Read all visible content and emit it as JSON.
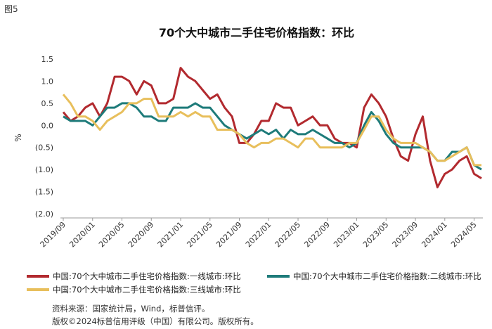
{
  "figure_label": "图5",
  "source_lines": [
    "资料来源：国家统计局，Wind，标普信评。",
    "版权©2024标普信用评级（中国）有限公司。版权所有。"
  ],
  "chart_data": {
    "type": "line",
    "title": "70个大中城市二手住宅价格指数：环比",
    "xlabel": "",
    "ylabel": "%",
    "ylim": [
      -2.0,
      1.5
    ],
    "yticks": [
      1.5,
      1.0,
      0.5,
      0.0,
      -0.5,
      -1.0,
      -1.5,
      -2.0
    ],
    "ytick_labels": [
      "1.5",
      "1.0",
      "0.5",
      "0.0",
      "(0.5)",
      "(1.0)",
      "(1.5)",
      "(2.0)"
    ],
    "xtick_labels": [
      "2019/09",
      "2020/01",
      "2020/05",
      "2020/09",
      "2021/01",
      "2021/05",
      "2021/09",
      "2022/01",
      "2022/05",
      "2022/09",
      "2023/01",
      "2023/05",
      "2023/09",
      "2024/01",
      "2024/05"
    ],
    "x_start": "2019/09",
    "x_end": "2024/05",
    "grid": false,
    "legend_position": "bottom",
    "series": [
      {
        "name": "中国:70个大中城市二手住宅价格指数:一线城市:环比",
        "color": "#b22a2f",
        "values": [
          0.3,
          0.1,
          0.2,
          0.4,
          0.5,
          0.2,
          0.5,
          1.1,
          1.1,
          1.0,
          0.7,
          1.0,
          0.9,
          0.5,
          0.5,
          0.6,
          1.3,
          1.1,
          1.0,
          0.8,
          0.6,
          0.7,
          0.4,
          0.2,
          -0.4,
          -0.4,
          -0.2,
          0.1,
          0.1,
          0.5,
          0.4,
          0.4,
          0.0,
          0.1,
          0.2,
          0.0,
          0.0,
          -0.3,
          -0.4,
          -0.4,
          -0.5,
          0.4,
          0.7,
          0.5,
          0.2,
          -0.3,
          -0.7,
          -0.8,
          -0.2,
          0.2,
          -0.8,
          -1.4,
          -1.1,
          -1.0,
          -0.8,
          -0.7,
          -1.1,
          -1.2
        ]
      },
      {
        "name": "中国:70个大中城市二手住宅价格指数:二线城市:环比",
        "color": "#1e7b7a",
        "values": [
          0.2,
          0.1,
          0.1,
          0.1,
          0.0,
          0.2,
          0.4,
          0.4,
          0.5,
          0.5,
          0.4,
          0.2,
          0.2,
          0.1,
          0.1,
          0.4,
          0.4,
          0.4,
          0.5,
          0.4,
          0.4,
          0.2,
          0.0,
          -0.1,
          -0.2,
          -0.3,
          -0.2,
          -0.1,
          -0.2,
          -0.1,
          -0.3,
          -0.1,
          -0.2,
          -0.2,
          -0.1,
          -0.2,
          -0.3,
          -0.4,
          -0.4,
          -0.5,
          -0.4,
          0.0,
          0.3,
          0.1,
          -0.2,
          -0.4,
          -0.5,
          -0.5,
          -0.5,
          -0.5,
          -0.6,
          -0.8,
          -0.8,
          -0.6,
          -0.6,
          -0.5,
          -0.9,
          -1.0
        ]
      },
      {
        "name": "中国:70个大中城市二手住宅价格指数:三线城市:环比",
        "color": "#e8bf5c",
        "values": [
          0.7,
          0.5,
          0.2,
          0.2,
          0.1,
          -0.1,
          0.1,
          0.2,
          0.3,
          0.5,
          0.5,
          0.6,
          0.6,
          0.2,
          0.2,
          0.2,
          0.3,
          0.2,
          0.3,
          0.2,
          0.2,
          -0.1,
          -0.1,
          -0.1,
          -0.2,
          -0.4,
          -0.5,
          -0.4,
          -0.4,
          -0.3,
          -0.3,
          -0.4,
          -0.5,
          -0.3,
          -0.3,
          -0.5,
          -0.5,
          -0.5,
          -0.5,
          -0.4,
          -0.4,
          -0.1,
          0.2,
          0.2,
          -0.1,
          -0.3,
          -0.4,
          -0.4,
          -0.4,
          -0.5,
          -0.6,
          -0.8,
          -0.8,
          -0.7,
          -0.6,
          -0.5,
          -0.9,
          -0.9
        ]
      }
    ]
  }
}
